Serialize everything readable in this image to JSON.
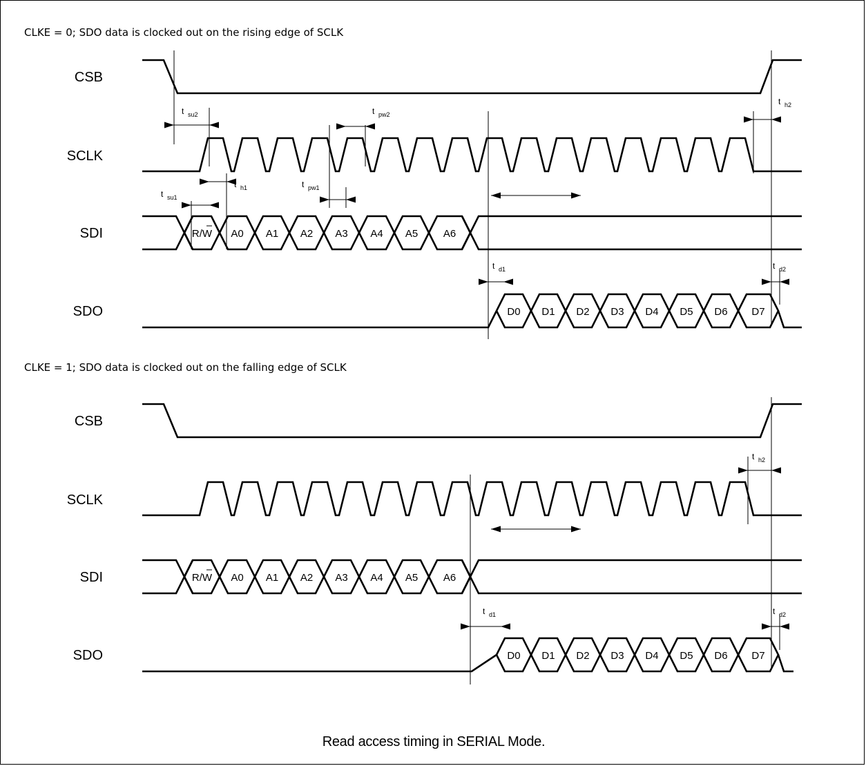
{
  "sections": [
    {
      "title": "CLKE = 0; SDO data is clocked out on the rising edge of SCLK",
      "signals": [
        "CSB",
        "SCLK",
        "SDI",
        "SDO"
      ],
      "sdi_cells": [
        "R/W",
        "A0",
        "A1",
        "A2",
        "A3",
        "A4",
        "A5",
        "A6"
      ],
      "sdo_cells": [
        "D0",
        "D1",
        "D2",
        "D3",
        "D4",
        "D5",
        "D6",
        "D7"
      ],
      "timing_labels": [
        {
          "t": "t",
          "sub": "su2"
        },
        {
          "t": "t",
          "sub": "pw2"
        },
        {
          "t": "t",
          "sub": "h2"
        },
        {
          "t": "t",
          "sub": "h1"
        },
        {
          "t": "t",
          "sub": "su1"
        },
        {
          "t": "t",
          "sub": "pw1"
        },
        {
          "t": "t",
          "sub": "d1"
        },
        {
          "t": "t",
          "sub": "d2"
        }
      ]
    },
    {
      "title": "CLKE = 1; SDO data is clocked out on the falling edge of SCLK",
      "signals": [
        "CSB",
        "SCLK",
        "SDI",
        "SDO"
      ],
      "sdi_cells": [
        "R/W",
        "A0",
        "A1",
        "A2",
        "A3",
        "A4",
        "A5",
        "A6"
      ],
      "sdo_cells": [
        "D0",
        "D1",
        "D2",
        "D3",
        "D4",
        "D5",
        "D6",
        "D7"
      ],
      "timing_labels": [
        {
          "t": "t",
          "sub": "h2"
        },
        {
          "t": "t",
          "sub": "d1"
        },
        {
          "t": "t",
          "sub": "d2"
        }
      ]
    }
  ],
  "caption": "Read access timing in SERIAL Mode."
}
